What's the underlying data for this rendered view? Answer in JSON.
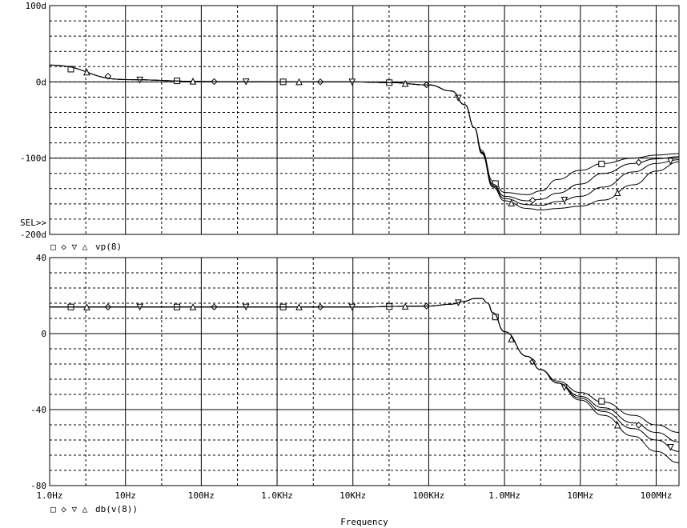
{
  "chart_data": [
    {
      "type": "line",
      "panel": "top",
      "x_scale": "log",
      "xlim": [
        1,
        200000000
      ],
      "ylim": [
        -200,
        100
      ],
      "y_ticks": [
        100,
        0,
        -100,
        -200
      ],
      "y_tick_labels": [
        "100d",
        "0d",
        "-100d",
        "-200d"
      ],
      "grid": true,
      "sel_marker": "SEL>>",
      "legend_markers": "□ ◇ ▽ △",
      "legend_label": "vp(8)",
      "series": [
        {
          "marker": "square",
          "x": [
            1,
            10,
            100,
            1000,
            10000,
            30000,
            100000,
            200000,
            300000,
            400000,
            500000,
            700000,
            1000000,
            2000000,
            3000000,
            5000000,
            10000000,
            20000000,
            50000000,
            100000000,
            200000000
          ],
          "values": [
            22,
            3,
            0.5,
            0,
            0,
            -1,
            -4,
            -12,
            -30,
            -60,
            -90,
            -130,
            -145,
            -148,
            -143,
            -128,
            -116,
            -107,
            -100,
            -96,
            -94
          ]
        },
        {
          "marker": "diamond",
          "x": [
            1,
            10,
            100,
            1000,
            10000,
            30000,
            100000,
            200000,
            300000,
            400000,
            500000,
            700000,
            1000000,
            2000000,
            3000000,
            5000000,
            10000000,
            20000000,
            50000000,
            100000000,
            200000000
          ],
          "values": [
            22,
            3,
            0.5,
            0,
            0,
            -1,
            -4,
            -12,
            -30,
            -60,
            -92,
            -134,
            -150,
            -156,
            -154,
            -146,
            -134,
            -120,
            -107,
            -101,
            -98
          ]
        },
        {
          "marker": "triangle-down",
          "x": [
            1,
            10,
            100,
            1000,
            10000,
            30000,
            100000,
            200000,
            300000,
            400000,
            500000,
            700000,
            1000000,
            2000000,
            3000000,
            5000000,
            10000000,
            20000000,
            50000000,
            100000000,
            200000000
          ],
          "values": [
            22,
            3,
            0.5,
            0,
            0,
            -1,
            -4,
            -12,
            -30,
            -60,
            -93,
            -136,
            -153,
            -161,
            -162,
            -157,
            -150,
            -138,
            -118,
            -107,
            -102
          ]
        },
        {
          "marker": "triangle-up",
          "x": [
            1,
            10,
            100,
            1000,
            10000,
            30000,
            100000,
            200000,
            300000,
            400000,
            500000,
            700000,
            1000000,
            2000000,
            3000000,
            5000000,
            10000000,
            20000000,
            50000000,
            100000000,
            200000000
          ],
          "values": [
            22,
            3,
            0.5,
            0,
            0,
            -1,
            -4,
            -12,
            -30,
            -60,
            -94,
            -138,
            -156,
            -166,
            -168,
            -166,
            -163,
            -155,
            -135,
            -117,
            -105
          ]
        }
      ]
    },
    {
      "type": "line",
      "panel": "bottom",
      "x_scale": "log",
      "xlim": [
        1,
        200000000
      ],
      "ylim": [
        -80,
        40
      ],
      "y_ticks": [
        40,
        0,
        -40,
        -80
      ],
      "y_tick_labels": [
        "40",
        "0",
        "-40",
        "-80"
      ],
      "x_ticks": [
        1,
        10,
        100,
        1000,
        10000,
        100000,
        1000000,
        10000000,
        100000000
      ],
      "x_tick_labels": [
        "1.0Hz",
        "10Hz",
        "100Hz",
        "1.0KHz",
        "10KHz",
        "100KHz",
        "1.0MHz",
        "10MHz",
        "100MHz"
      ],
      "xlabel": "Frequency",
      "grid": true,
      "legend_markers": "□ ◇ ▽ △",
      "legend_label": "db(v(8))",
      "series": [
        {
          "marker": "square",
          "x": [
            1,
            10,
            100,
            1000,
            10000,
            100000,
            200000,
            300000,
            400000,
            500000,
            600000,
            700000,
            1000000,
            2000000,
            3000000,
            5000000,
            10000000,
            20000000,
            50000000,
            100000000,
            200000000
          ],
          "values": [
            14,
            14,
            14,
            14,
            14,
            14.5,
            15.5,
            17,
            18.5,
            18.5,
            16,
            11,
            1,
            -12,
            -19,
            -25,
            -31,
            -36,
            -43,
            -48,
            -52
          ]
        },
        {
          "marker": "diamond",
          "x": [
            1,
            10,
            100,
            1000,
            10000,
            100000,
            200000,
            300000,
            400000,
            500000,
            600000,
            700000,
            1000000,
            2000000,
            3000000,
            5000000,
            10000000,
            20000000,
            50000000,
            100000000,
            200000000
          ],
          "values": [
            14,
            14,
            14,
            14,
            14,
            14.5,
            15.5,
            17,
            18.5,
            18.5,
            16,
            11,
            1,
            -12,
            -19,
            -26,
            -33,
            -39,
            -47,
            -52,
            -57
          ]
        },
        {
          "marker": "triangle-down",
          "x": [
            1,
            10,
            100,
            1000,
            10000,
            100000,
            200000,
            300000,
            400000,
            500000,
            600000,
            700000,
            1000000,
            2000000,
            3000000,
            5000000,
            10000000,
            20000000,
            50000000,
            100000000,
            200000000
          ],
          "values": [
            14,
            14,
            14,
            14,
            14,
            14.5,
            15.5,
            17,
            18.5,
            18.5,
            16,
            11,
            1,
            -12,
            -19,
            -26,
            -34,
            -41,
            -50,
            -56,
            -62
          ]
        },
        {
          "marker": "triangle-up",
          "x": [
            1,
            10,
            100,
            1000,
            10000,
            100000,
            200000,
            300000,
            400000,
            500000,
            600000,
            700000,
            1000000,
            2000000,
            3000000,
            5000000,
            10000000,
            20000000,
            50000000,
            100000000,
            200000000
          ],
          "values": [
            14,
            14,
            14,
            14,
            14,
            14.5,
            15.5,
            17,
            18.5,
            18.5,
            16,
            11,
            1,
            -12,
            -19,
            -26,
            -35,
            -43,
            -54,
            -62,
            -68
          ]
        }
      ]
    }
  ]
}
